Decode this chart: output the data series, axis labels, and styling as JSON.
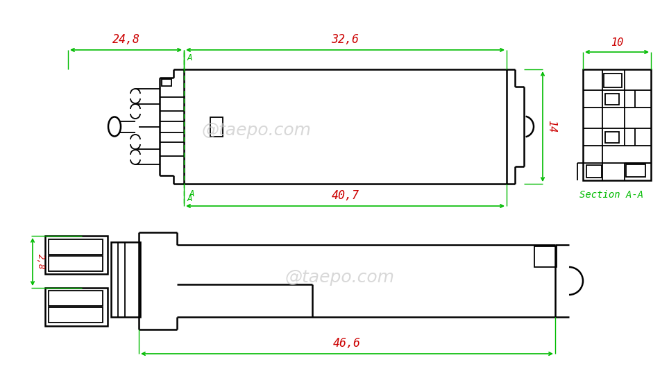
{
  "background_color": "#ffffff",
  "line_color": "#000000",
  "dim_color": "#cc0000",
  "arrow_color": "#00bb00",
  "watermark": "@taepo.com",
  "watermark_color": "#c8c8c8",
  "dim_24_8": "24,8",
  "dim_32_6": "32,6",
  "dim_40_7": "40,7",
  "dim_46_6": "46,6",
  "dim_10": "10",
  "dim_14": "14",
  "dim_2_8": "2,8",
  "section_label": "Section A-A",
  "cut_label": "A",
  "figsize": [
    9.64,
    5.32
  ],
  "dpi": 100
}
